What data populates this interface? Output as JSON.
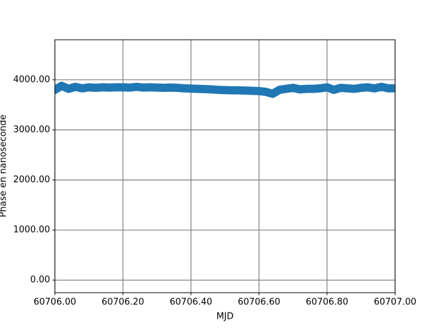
{
  "chart_data": {
    "type": "line",
    "x_label": "MJD",
    "y_label": "Phase en nanoseconde",
    "x": [
      60706.0,
      60706.02,
      60706.04,
      60706.06,
      60706.08,
      60706.1,
      60706.12,
      60706.14,
      60706.16,
      60706.18,
      60706.2,
      60706.22,
      60706.24,
      60706.26,
      60706.28,
      60706.3,
      60706.32,
      60706.34,
      60706.36,
      60706.38,
      60706.4,
      60706.42,
      60706.44,
      60706.46,
      60706.48,
      60706.5,
      60706.52,
      60706.54,
      60706.56,
      60706.58,
      60706.6,
      60706.62,
      60706.64,
      60706.66,
      60706.68,
      60706.7,
      60706.72,
      60706.74,
      60706.76,
      60706.78,
      60706.8,
      60706.82,
      60706.84,
      60706.86,
      60706.88,
      60706.9,
      60706.92,
      60706.94,
      60706.96,
      60706.98,
      60707.0
    ],
    "values": [
      3800,
      3880,
      3820,
      3860,
      3830,
      3850,
      3840,
      3850,
      3845,
      3850,
      3850,
      3845,
      3860,
      3845,
      3850,
      3845,
      3840,
      3845,
      3840,
      3830,
      3825,
      3820,
      3815,
      3810,
      3800,
      3795,
      3790,
      3790,
      3785,
      3780,
      3775,
      3760,
      3720,
      3800,
      3820,
      3840,
      3810,
      3820,
      3820,
      3830,
      3850,
      3800,
      3840,
      3830,
      3820,
      3840,
      3850,
      3830,
      3860,
      3830,
      3830
    ],
    "color": "#1f77b4",
    "xlim": [
      60706,
      60707
    ],
    "xticks": [
      {
        "value": 60706,
        "label": "60706.00"
      },
      {
        "value": 60706.2,
        "label": "60706.20"
      },
      {
        "value": 60706.4,
        "label": "60706.40"
      },
      {
        "value": 60706.6,
        "label": "60706.60"
      },
      {
        "value": 60706.8,
        "label": "60706.80"
      },
      {
        "value": 60707,
        "label": "60707.00"
      }
    ],
    "ylim": [
      -250,
      4800
    ],
    "yticks": [
      {
        "value": 0,
        "label": "0.00"
      },
      {
        "value": 1000,
        "label": "1000.00"
      },
      {
        "value": 2000,
        "label": "2000.00"
      },
      {
        "value": 3000,
        "label": "3000.00"
      },
      {
        "value": 4000,
        "label": "4000.00"
      }
    ],
    "grid": true
  }
}
